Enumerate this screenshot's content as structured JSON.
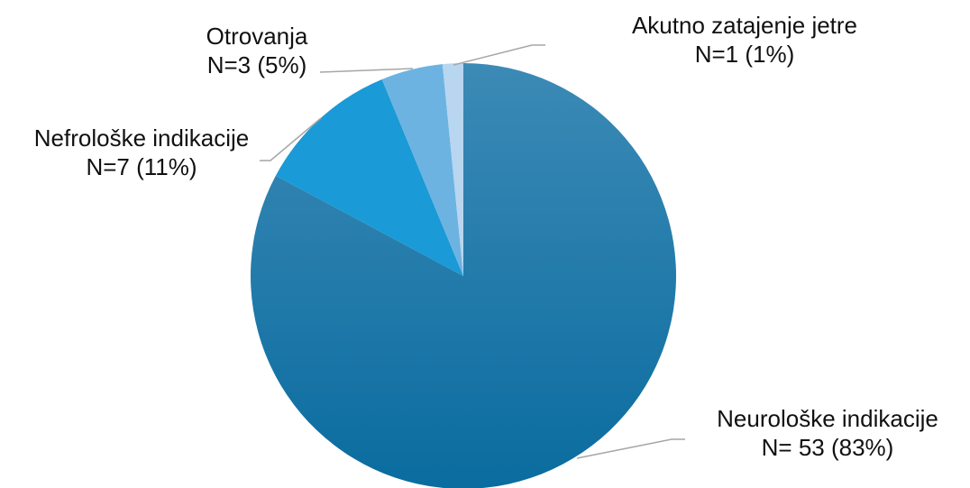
{
  "chart_data": {
    "type": "pie",
    "categories": [
      "Neurološke indikacije",
      "Nefrološke indikacije",
      "Otrovanja",
      "Akutno zatajenje jetre"
    ],
    "values": [
      53,
      7,
      3,
      1
    ],
    "value_labels": [
      "N= 53 (83%)",
      "N=7 (11%)",
      "N=3 (5%)",
      "N=1 (1%)"
    ],
    "colors": [
      "#1a7eb2",
      "#1a9ad6",
      "#6cb3e2",
      "#b8d6ef"
    ]
  }
}
